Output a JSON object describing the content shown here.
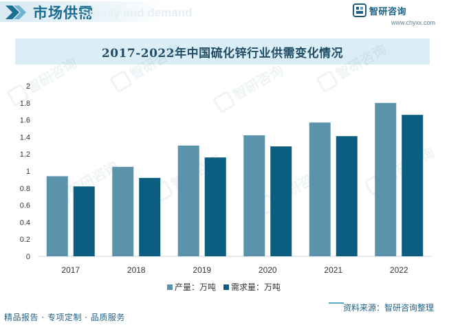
{
  "header": {
    "title": "市场供需",
    "ghost_text": "Supply and demand"
  },
  "brand": {
    "name": "智研咨询",
    "url": "www.chyxx.com",
    "logo_icon": "chyxx-logo-icon"
  },
  "watermark": {
    "text": "智研咨询"
  },
  "chart_data": {
    "type": "bar",
    "title": "2017-2022年中国硫化锌行业供需变化情况",
    "categories": [
      "2017",
      "2018",
      "2019",
      "2020",
      "2021",
      "2022"
    ],
    "series": [
      {
        "name": "产量：万吨",
        "color": "#5b93ad",
        "values": [
          0.94,
          1.05,
          1.3,
          1.42,
          1.57,
          1.8
        ]
      },
      {
        "name": "需求量：万吨",
        "color": "#0b5e7f",
        "values": [
          0.82,
          0.92,
          1.16,
          1.29,
          1.41,
          1.66
        ]
      }
    ],
    "y_ticks": [
      "0",
      "0.2",
      "0.4",
      "0.6",
      "0.8",
      "1",
      "1.2",
      "1.4",
      "1.6",
      "1.8",
      "2"
    ],
    "ylim": [
      0,
      2
    ],
    "grid": false,
    "legend_position": "bottom"
  },
  "footer": {
    "services": "精品报告 · 专项定制 · 品质服务",
    "source": "资料来源：智研咨询整理"
  }
}
